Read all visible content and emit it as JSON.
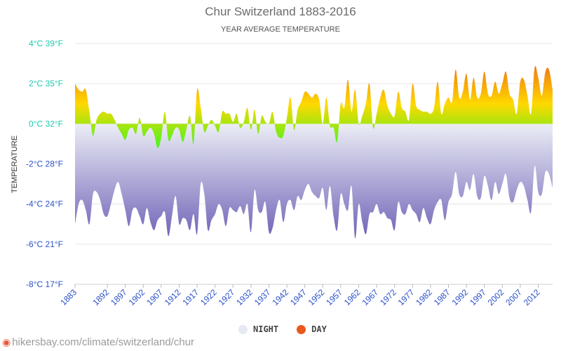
{
  "header": {
    "title": "Chur Switzerland 1883-2016",
    "subtitle": "YEAR AVERAGE TEMPERATURE"
  },
  "legend": {
    "night": "NIGHT",
    "day": "DAY"
  },
  "footer": {
    "url": "hikersbay.com/climate/switzerland/chur",
    "icon": "location-pin-icon"
  },
  "colors": {
    "night_top": "#eceef6",
    "night_bottom": "#6b5fb5",
    "day_hot": "#e8401e",
    "day_warm": "#ffd800",
    "day_mild": "#00ff2a",
    "day_cold": "#1a3fd6",
    "tick_warm": "#1fc9b0",
    "tick_cold": "#2a50c8",
    "legend_night": "#e6e8f2",
    "legend_day": "#e8581f"
  },
  "chart_data": {
    "type": "area",
    "ylabel": "TEMPERATURE",
    "ylim": [
      -8,
      4
    ],
    "y_ticks": [
      {
        "c": 4,
        "label": "4°C 39°F"
      },
      {
        "c": 2,
        "label": "2°C 35°F"
      },
      {
        "c": 0,
        "label": "0°C 32°F"
      },
      {
        "c": -2,
        "label": "-2°C 28°F"
      },
      {
        "c": -4,
        "label": "-4°C 24°F"
      },
      {
        "c": -6,
        "label": "-6°C 21°F"
      },
      {
        "c": -8,
        "label": "-8°C 17°F"
      }
    ],
    "x_ticks": [
      "1883",
      "1892",
      "1897",
      "1902",
      "1907",
      "1912",
      "1917",
      "1922",
      "1927",
      "1932",
      "1937",
      "1942",
      "1947",
      "1952",
      "1957",
      "1962",
      "1967",
      "1972",
      "1977",
      "1982",
      "1987",
      "1992",
      "1997",
      "2002",
      "2007",
      "2012"
    ],
    "x_range": [
      1883,
      2016
    ],
    "grid": true,
    "series": [
      {
        "name": "DAY",
        "years": [
          1883,
          1884,
          1885,
          1886,
          1887,
          1888,
          1889,
          1890,
          1891,
          1892,
          1893,
          1894,
          1895,
          1896,
          1897,
          1898,
          1899,
          1900,
          1901,
          1902,
          1903,
          1904,
          1905,
          1906,
          1907,
          1908,
          1909,
          1910,
          1911,
          1912,
          1913,
          1914,
          1915,
          1916,
          1917,
          1918,
          1919,
          1920,
          1921,
          1922,
          1923,
          1924,
          1925,
          1926,
          1927,
          1928,
          1929,
          1930,
          1931,
          1932,
          1933,
          1934,
          1935,
          1936,
          1937,
          1938,
          1939,
          1940,
          1941,
          1942,
          1943,
          1944,
          1945,
          1946,
          1947,
          1948,
          1949,
          1950,
          1951,
          1952,
          1953,
          1954,
          1955,
          1956,
          1957,
          1958,
          1959,
          1960,
          1961,
          1962,
          1963,
          1964,
          1965,
          1966,
          1967,
          1968,
          1969,
          1970,
          1971,
          1972,
          1973,
          1974,
          1975,
          1976,
          1977,
          1978,
          1979,
          1980,
          1981,
          1982,
          1983,
          1984,
          1985,
          1986,
          1987,
          1988,
          1989,
          1990,
          1991,
          1992,
          1993,
          1994,
          1995,
          1996,
          1997,
          1998,
          1999,
          2000,
          2001,
          2002,
          2003,
          2004,
          2005,
          2006,
          2007,
          2008,
          2009,
          2010,
          2011,
          2012,
          2013,
          2014,
          2015,
          2016
        ],
        "values": [
          2.0,
          1.7,
          1.6,
          1.7,
          0.6,
          -0.6,
          0.2,
          0.5,
          0.6,
          0.5,
          0.5,
          0.2,
          -0.2,
          -0.5,
          -0.8,
          -0.3,
          -0.2,
          -0.5,
          0.3,
          -0.6,
          -0.4,
          -0.2,
          -0.5,
          -1.2,
          -0.7,
          0.6,
          -0.8,
          -0.6,
          -0.2,
          -0.3,
          -0.9,
          -0.3,
          0.4,
          -1.0,
          1.7,
          0.8,
          -0.4,
          -0.1,
          0.2,
          -0.1,
          -0.4,
          0.6,
          0.5,
          0.5,
          0.1,
          0.5,
          -0.2,
          0.1,
          0.8,
          -0.3,
          0.7,
          -0.5,
          0.4,
          0.1,
          0.0,
          0.6,
          -0.4,
          -0.7,
          -0.6,
          0.3,
          1.3,
          -0.3,
          0.7,
          1.1,
          1.6,
          1.5,
          1.3,
          1.5,
          1.2,
          0.0,
          1.3,
          -0.1,
          -0.2,
          -0.9,
          1.0,
          0.8,
          2.2,
          0.6,
          1.7,
          0.0,
          0.4,
          1.0,
          2.0,
          -0.2,
          0.5,
          1.3,
          1.7,
          0.9,
          0.5,
          0.4,
          1.6,
          0.8,
          0.6,
          0.2,
          2.0,
          0.9,
          0.7,
          0.6,
          0.6,
          0.5,
          0.8,
          2.1,
          0.5,
          1.0,
          1.3,
          1.1,
          2.7,
          1.3,
          1.6,
          2.5,
          1.2,
          2.3,
          1.3,
          1.5,
          2.6,
          1.5,
          1.4,
          2.1,
          1.5,
          2.0,
          2.6,
          1.5,
          1.2,
          0.5,
          2.1,
          2.2,
          1.4,
          0.5,
          2.8,
          2.3,
          1.4,
          2.6,
          2.7,
          1.7
        ]
      },
      {
        "name": "NIGHT",
        "years": [
          1883,
          1884,
          1885,
          1886,
          1887,
          1888,
          1889,
          1890,
          1891,
          1892,
          1893,
          1894,
          1895,
          1896,
          1897,
          1898,
          1899,
          1900,
          1901,
          1902,
          1903,
          1904,
          1905,
          1906,
          1907,
          1908,
          1909,
          1910,
          1911,
          1912,
          1913,
          1914,
          1915,
          1916,
          1917,
          1918,
          1919,
          1920,
          1921,
          1922,
          1923,
          1924,
          1925,
          1926,
          1927,
          1928,
          1929,
          1930,
          1931,
          1932,
          1933,
          1934,
          1935,
          1936,
          1937,
          1938,
          1939,
          1940,
          1941,
          1942,
          1943,
          1944,
          1945,
          1946,
          1947,
          1948,
          1949,
          1950,
          1951,
          1952,
          1953,
          1954,
          1955,
          1956,
          1957,
          1958,
          1959,
          1960,
          1961,
          1962,
          1963,
          1964,
          1965,
          1966,
          1967,
          1968,
          1969,
          1970,
          1971,
          1972,
          1973,
          1974,
          1975,
          1976,
          1977,
          1978,
          1979,
          1980,
          1981,
          1982,
          1983,
          1984,
          1985,
          1986,
          1987,
          1988,
          1989,
          1990,
          1991,
          1992,
          1993,
          1994,
          1995,
          1996,
          1997,
          1998,
          1999,
          2000,
          2001,
          2002,
          2003,
          2004,
          2005,
          2006,
          2007,
          2008,
          2009,
          2010,
          2011,
          2012,
          2013,
          2014,
          2015,
          2016
        ],
        "values": [
          -5.0,
          -4.0,
          -3.8,
          -4.3,
          -5.0,
          -3.5,
          -3.4,
          -3.8,
          -4.5,
          -4.6,
          -4.0,
          -3.3,
          -2.9,
          -3.5,
          -4.3,
          -5.1,
          -4.3,
          -4.2,
          -4.6,
          -5.0,
          -4.2,
          -4.9,
          -5.3,
          -4.8,
          -4.6,
          -4.4,
          -5.6,
          -4.6,
          -3.6,
          -5.0,
          -4.7,
          -4.8,
          -5.3,
          -4.5,
          -5.5,
          -3.0,
          -3.5,
          -5.3,
          -4.8,
          -4.5,
          -4.0,
          -4.3,
          -5.1,
          -4.2,
          -4.3,
          -4.4,
          -4.1,
          -4.5,
          -4.0,
          -5.4,
          -3.3,
          -4.3,
          -4.4,
          -3.9,
          -5.4,
          -5.2,
          -4.3,
          -3.8,
          -4.9,
          -4.0,
          -3.8,
          -4.3,
          -3.6,
          -3.8,
          -3.3,
          -3.0,
          -3.4,
          -3.6,
          -3.7,
          -3.2,
          -4.3,
          -3.1,
          -4.6,
          -5.3,
          -3.5,
          -4.0,
          -4.3,
          -3.1,
          -5.7,
          -4.0,
          -4.9,
          -5.5,
          -4.5,
          -4.4,
          -4.0,
          -4.5,
          -4.4,
          -4.7,
          -4.8,
          -5.3,
          -3.9,
          -4.4,
          -4.5,
          -4.0,
          -4.3,
          -4.5,
          -4.9,
          -4.2,
          -4.7,
          -5.0,
          -4.3,
          -3.9,
          -3.8,
          -4.8,
          -3.9,
          -3.5,
          -2.4,
          -3.5,
          -3.6,
          -2.9,
          -3.3,
          -2.5,
          -3.6,
          -3.7,
          -2.6,
          -3.1,
          -3.8,
          -2.9,
          -3.5,
          -3.0,
          -2.5,
          -3.7,
          -3.9,
          -3.3,
          -2.9,
          -3.1,
          -3.8,
          -4.4,
          -2.1,
          -3.4,
          -3.5,
          -2.4,
          -2.5,
          -3.2
        ]
      }
    ]
  }
}
